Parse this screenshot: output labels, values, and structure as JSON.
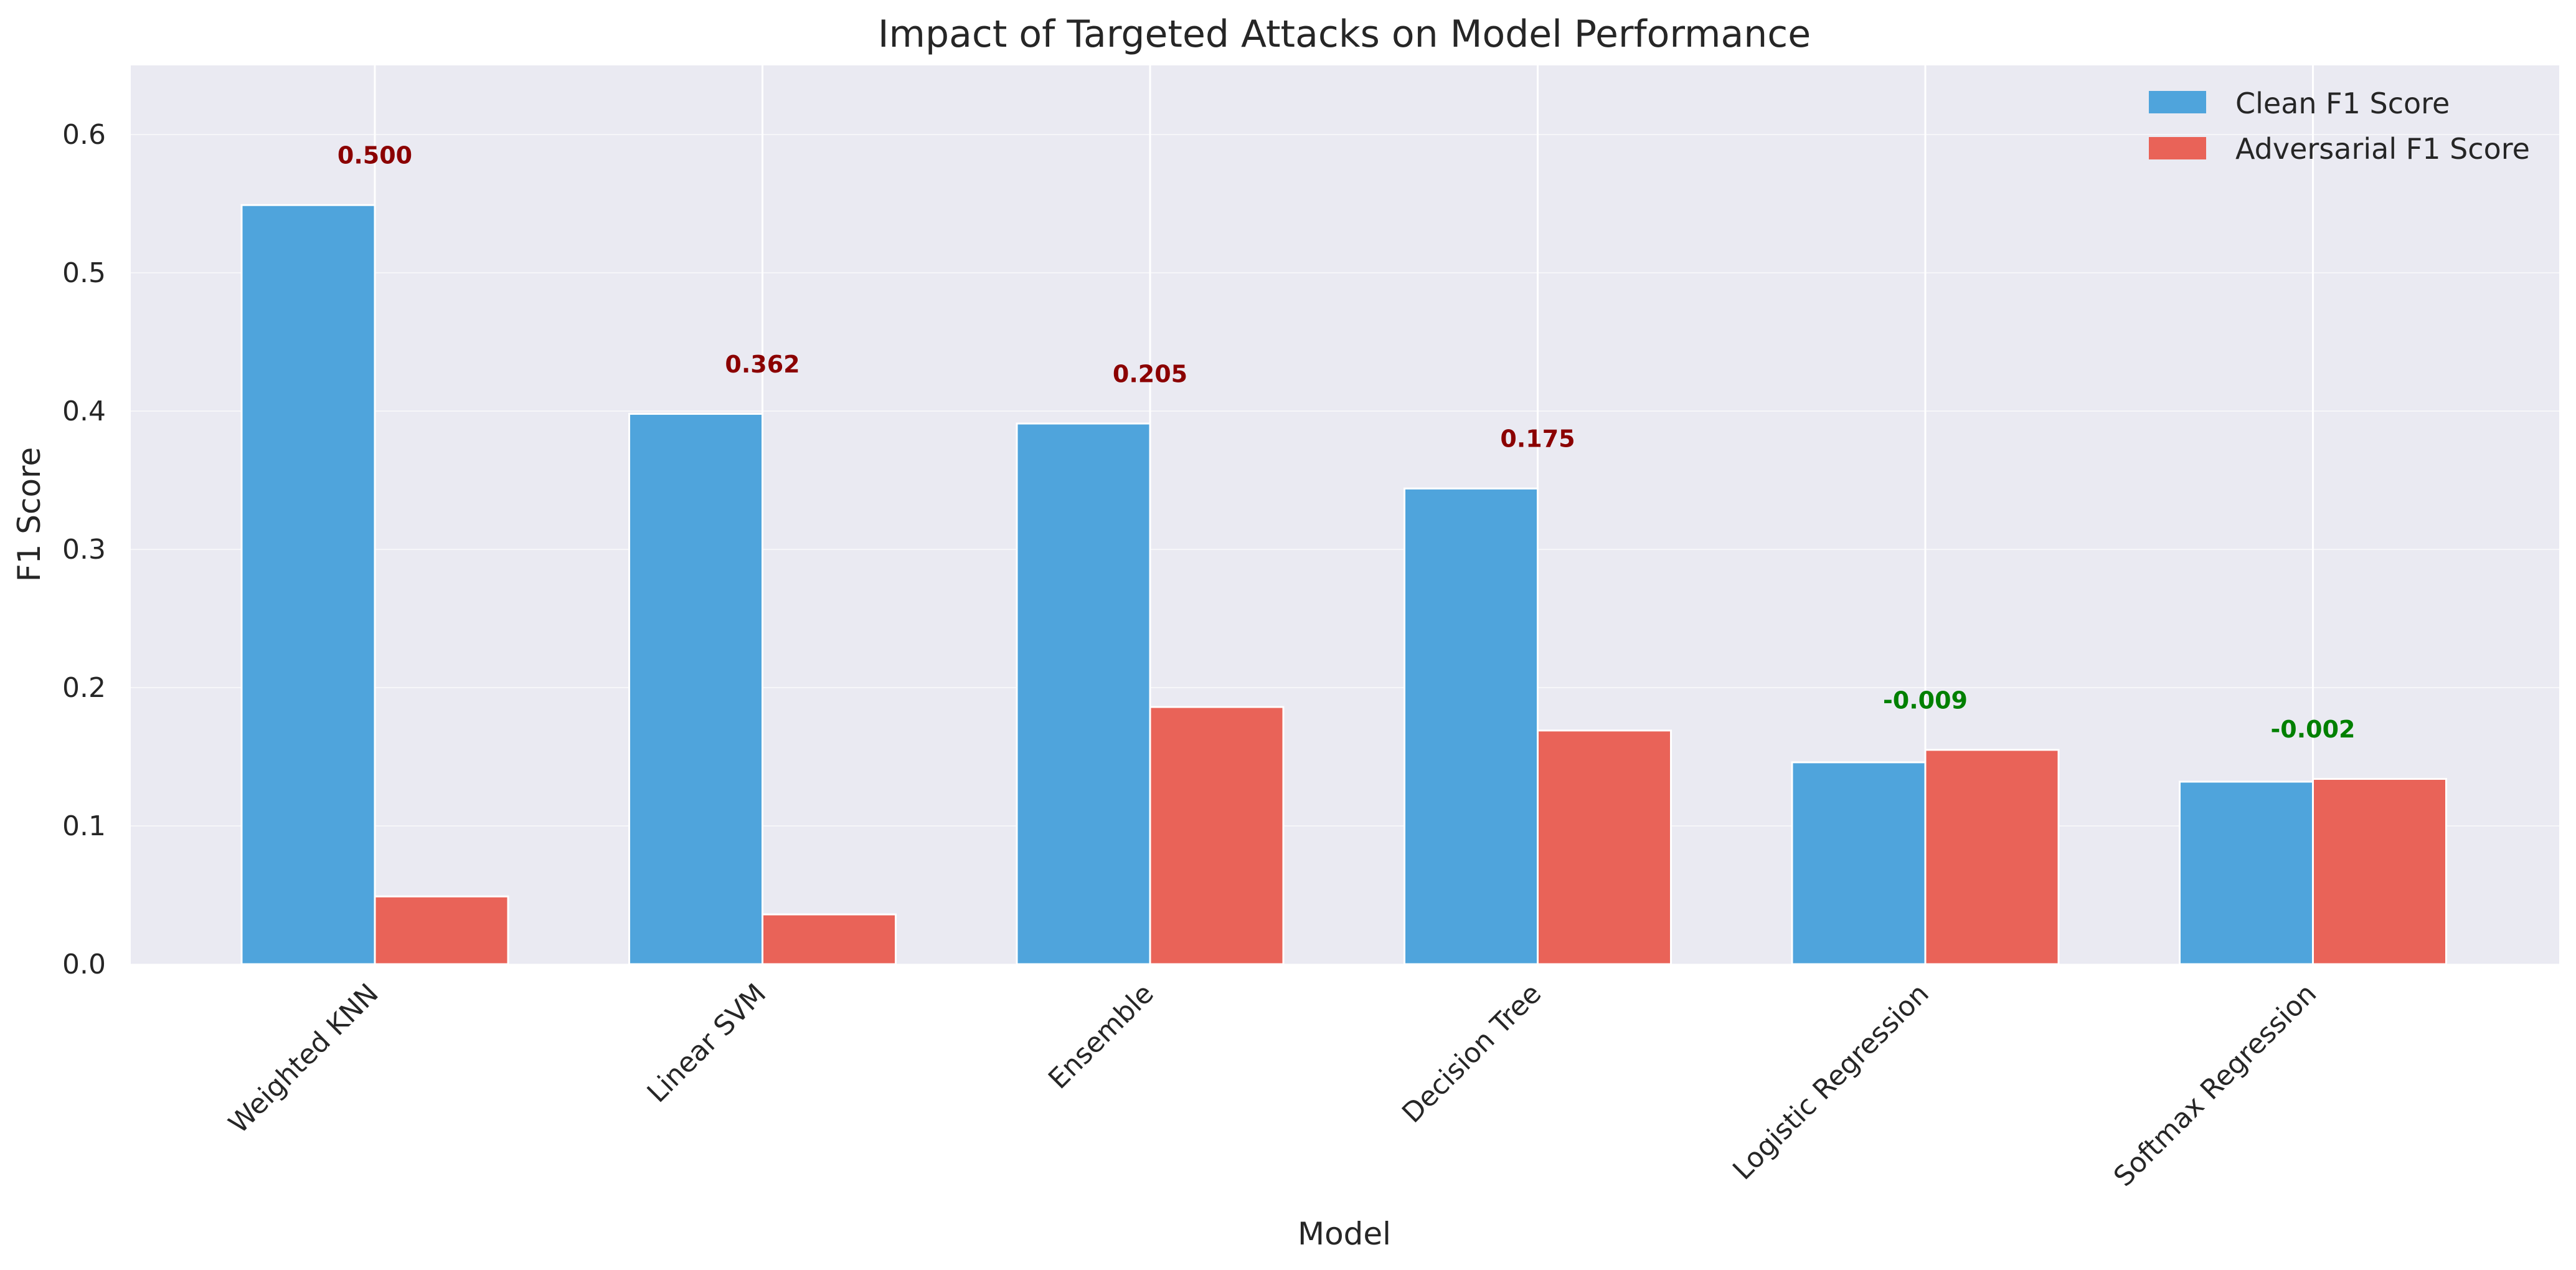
{
  "colors": {
    "clean": "#4fa4dc",
    "adversarial": "#e96358",
    "positive_drop": "#8b0000",
    "negative_drop": "#008000",
    "plot_background": "#eaeaf2",
    "grid": "#ffffff"
  },
  "chart_data": {
    "type": "bar",
    "title": "Impact of Targeted Attacks on Model Performance",
    "xlabel": "Model",
    "ylabel": "F1 Score",
    "ylim": [
      0,
      0.65
    ],
    "yticks": [
      "0.0",
      "0.1",
      "0.2",
      "0.3",
      "0.4",
      "0.5",
      "0.6"
    ],
    "categories": [
      "Weighted KNN",
      "Linear SVM",
      "Ensemble",
      "Decision Tree",
      "Logistic Regression",
      "Softmax Regression"
    ],
    "series": [
      {
        "name": "Clean F1 Score",
        "values": [
          0.549,
          0.398,
          0.391,
          0.344,
          0.146,
          0.132
        ]
      },
      {
        "name": "Adversarial F1 Score",
        "values": [
          0.049,
          0.036,
          0.186,
          0.169,
          0.155,
          0.134
        ]
      }
    ],
    "annotations": [
      "0.500",
      "0.362",
      "0.205",
      "0.175",
      "-0.009",
      "-0.002"
    ],
    "grid": true,
    "legend_position": "top-right"
  }
}
